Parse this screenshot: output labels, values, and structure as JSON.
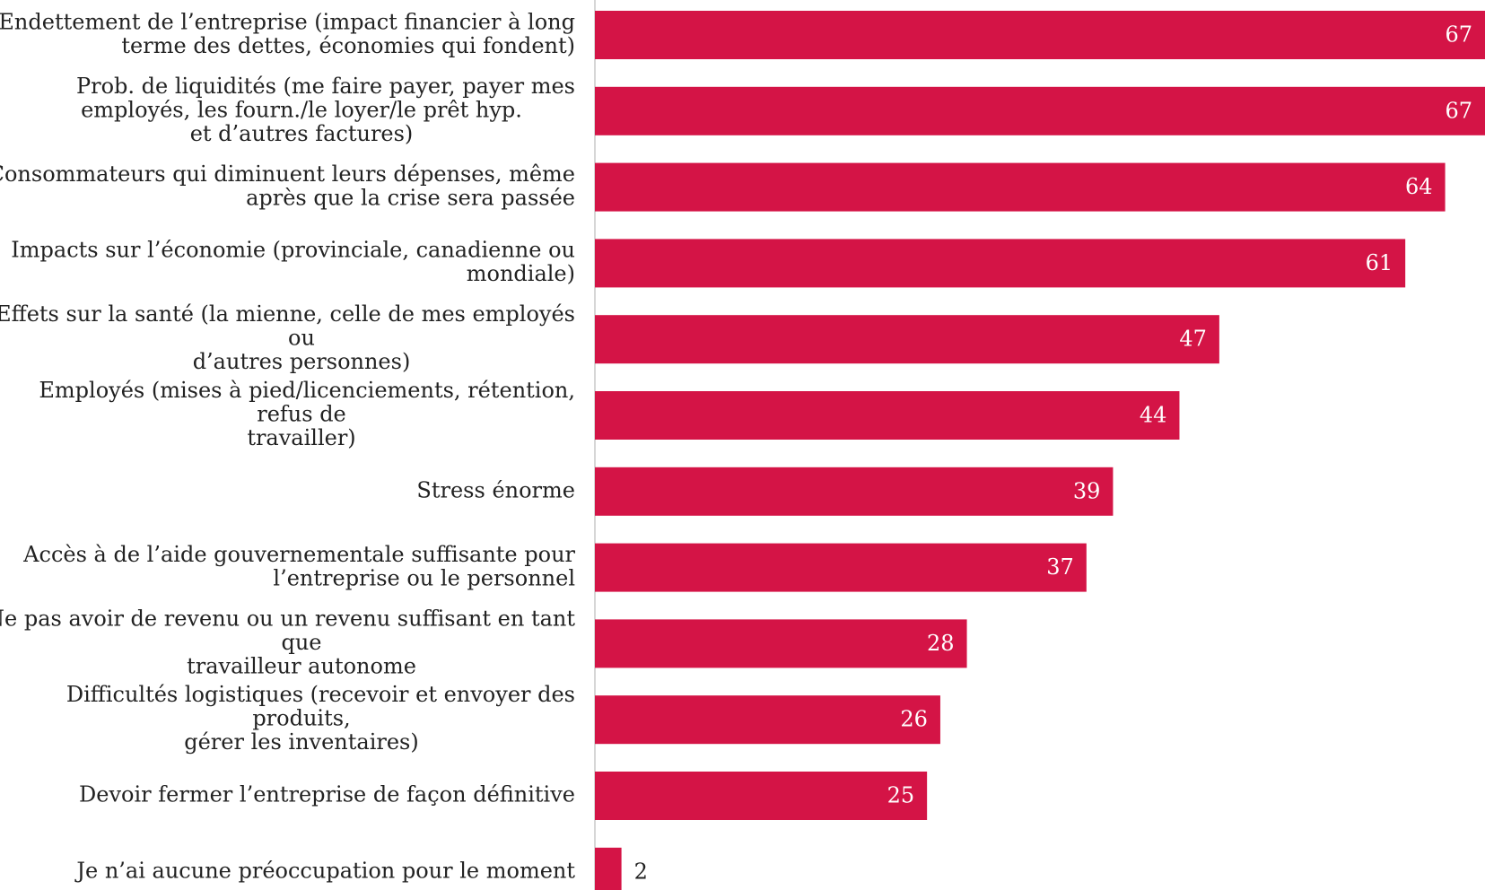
{
  "chart_data": {
    "type": "bar",
    "orientation": "horizontal",
    "bar_color": "#d41446",
    "axis_color": "#c8c8c8",
    "categories": [
      [
        "Endettement de l’entreprise (impact financier à long",
        "terme des dettes, économies qui fondent)"
      ],
      [
        "Prob. de liquidités (me faire payer, payer mes",
        "employés, les fourn./le loyer/le prêt hyp.",
        "et d’autres factures)"
      ],
      [
        "Consommateurs qui diminuent leurs dépenses, même",
        "après que la crise sera passée"
      ],
      [
        "Impacts sur l’économie (provinciale, canadienne ou",
        "mondiale)"
      ],
      [
        "Effets sur la santé (la mienne, celle de mes employés",
        "ou",
        "d’autres personnes)"
      ],
      [
        "Employés (mises à pied/licenciements, rétention,",
        "refus de",
        "travailler)"
      ],
      [
        "Stress énorme"
      ],
      [
        "Accès à de l’aide gouvernementale suffisante pour",
        "l’entreprise ou le personnel"
      ],
      [
        "Ne pas avoir de revenu ou un revenu suffisant en tant",
        "que",
        "travailleur autonome"
      ],
      [
        "Difficultés logistiques (recevoir et envoyer des",
        "produits,",
        "gérer les inventaires)"
      ],
      [
        "Devoir fermer l’entreprise de façon définitive"
      ],
      [
        "Je n’ai aucune préoccupation pour le moment"
      ]
    ],
    "values": [
      67,
      67,
      64,
      61,
      47,
      44,
      39,
      37,
      28,
      26,
      25,
      2
    ],
    "xlim": [
      0,
      67
    ]
  }
}
